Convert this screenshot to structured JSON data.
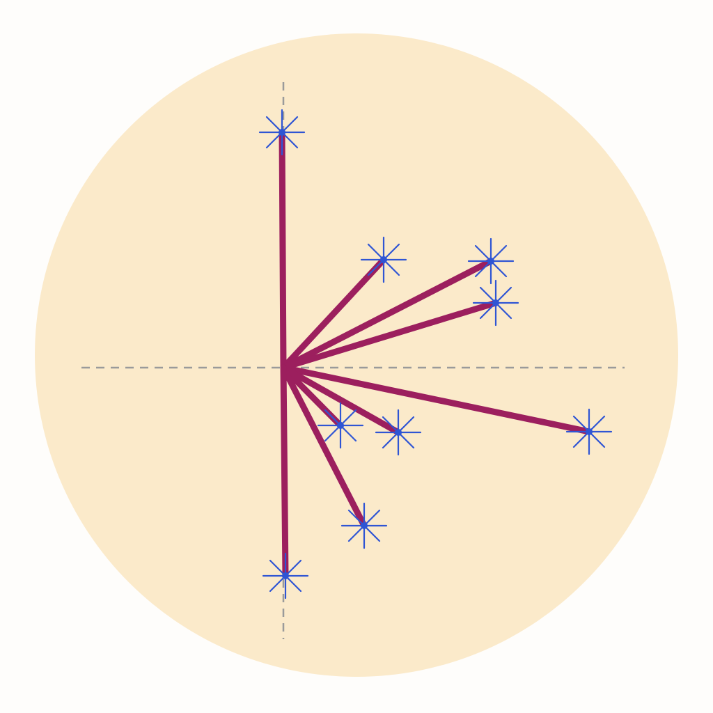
{
  "chart_data": {
    "type": "compass",
    "title": "",
    "xlabel": "",
    "ylabel": "",
    "xlim": [
      -2.9,
      4.9
    ],
    "ylim": [
      -3.9,
      4.1
    ],
    "grid": false,
    "axes_style": "dashed crosshair through origin",
    "vectors": [
      {
        "x": -0.02,
        "y": 3.38
      },
      {
        "x": 1.44,
        "y": 1.55
      },
      {
        "x": 2.98,
        "y": 1.53
      },
      {
        "x": 3.05,
        "y": 0.93
      },
      {
        "x": 4.39,
        "y": -0.92
      },
      {
        "x": 1.65,
        "y": -0.93
      },
      {
        "x": 0.82,
        "y": -0.83
      },
      {
        "x": 1.16,
        "y": -2.27
      },
      {
        "x": 0.03,
        "y": -2.99
      }
    ],
    "marker": "star",
    "colors": {
      "background_disc": "#fbeaca",
      "vector_line": "#9c1f5e",
      "marker": "#2f55d4",
      "axis": "#9a9a9a"
    }
  }
}
